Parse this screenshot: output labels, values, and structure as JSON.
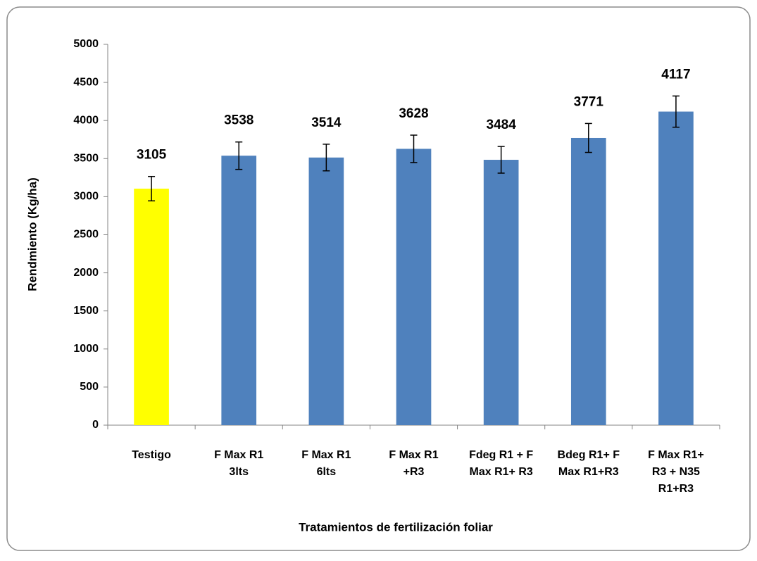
{
  "chart_data": {
    "type": "bar",
    "xlabel": "Tratamientos de fertilización  foliar",
    "ylabel": "Rendmiento (Kg/ha)",
    "categories": [
      "Testigo",
      "F Max R1\n3lts",
      "F Max R1\n6lts",
      "F Max R1\n+R3",
      "Fdeg R1 + F\nMax R1+ R3",
      "Bdeg R1+ F\nMax R1+R3",
      "F Max R1+\nR3  + N35\nR1+R3"
    ],
    "values": [
      3105,
      3538,
      3514,
      3628,
      3484,
      3771,
      4117
    ],
    "errors": [
      160,
      180,
      175,
      180,
      175,
      190,
      205
    ],
    "colors": [
      "#ffff00",
      "#4f81bd",
      "#4f81bd",
      "#4f81bd",
      "#4f81bd",
      "#4f81bd",
      "#4f81bd"
    ],
    "ylim": [
      0,
      5000
    ],
    "yticks": [
      0,
      500,
      1000,
      1500,
      2000,
      2500,
      3000,
      3500,
      4000,
      4500,
      5000
    ],
    "grid": false
  }
}
